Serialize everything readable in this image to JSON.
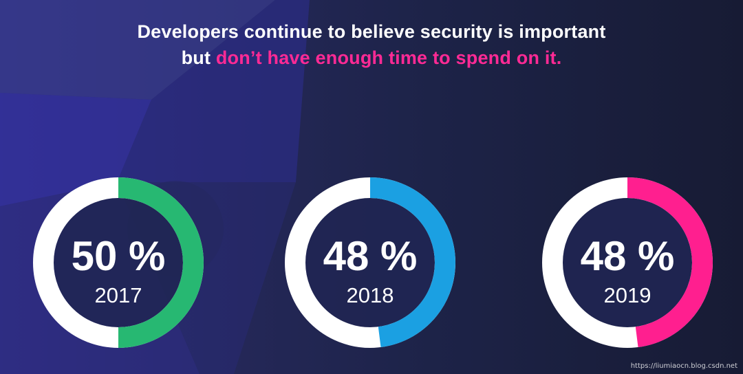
{
  "title": {
    "line1": "Developers continue to believe security is important",
    "line2_prefix": "but ",
    "line2_highlight": "don’t have enough time to spend on it."
  },
  "colors": {
    "bg_dark": "#171c36",
    "bg_mid": "#202650",
    "accent": "#ff2a95",
    "ring_base": "#ffffff",
    "text": "#ffffff"
  },
  "chart_data": {
    "type": "pie",
    "title": "Developers continue to believe security is important but don’t have enough time to spend on it.",
    "unit": "%",
    "series": [
      {
        "category": "2017",
        "value": 50,
        "label": "50 %",
        "year": "2017",
        "color": "#27b872"
      },
      {
        "category": "2018",
        "value": 48,
        "label": "48 %",
        "year": "2018",
        "color": "#1ba0e2"
      },
      {
        "category": "2019",
        "value": 48,
        "label": "48 %",
        "year": "2019",
        "color": "#ff1f8f"
      }
    ]
  },
  "watermark": "https://liumiaocn.blog.csdn.net"
}
